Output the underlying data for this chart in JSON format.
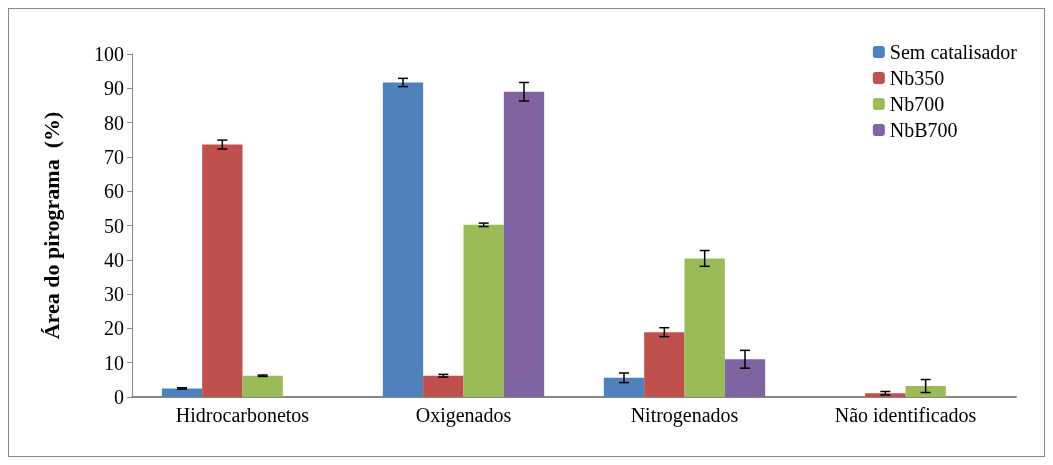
{
  "chart_data": {
    "type": "bar",
    "ylabel": "Área do pirograma  (%)",
    "categories": [
      "Hidrocarbonetos",
      "Oxigenados",
      "Nitrogenados",
      "Não identificados"
    ],
    "series": [
      {
        "name": "Sem catalisador",
        "color": "#4f81bd",
        "values": [
          2.5,
          91.7,
          5.6,
          null
        ],
        "errors": [
          0.2,
          1.2,
          1.4,
          null
        ]
      },
      {
        "name": "Nb350",
        "color": "#c0504d",
        "values": [
          73.6,
          6.2,
          18.9,
          1.1
        ],
        "errors": [
          1.3,
          0.4,
          1.3,
          0.5
        ]
      },
      {
        "name": "Nb700",
        "color": "#9bbb59",
        "values": [
          6.2,
          50.2,
          40.4,
          3.2
        ],
        "errors": [
          0.2,
          0.5,
          2.3,
          1.9
        ]
      },
      {
        "name": "NbB700",
        "color": "#8064a2",
        "values": [
          null,
          89.0,
          11.0,
          null
        ],
        "errors": [
          null,
          2.7,
          2.6,
          null
        ]
      }
    ],
    "ylim": [
      0,
      100
    ],
    "yticks": [
      0,
      10,
      20,
      30,
      40,
      50,
      60,
      70,
      80,
      90,
      100
    ],
    "grid": false,
    "legend": "top right"
  }
}
